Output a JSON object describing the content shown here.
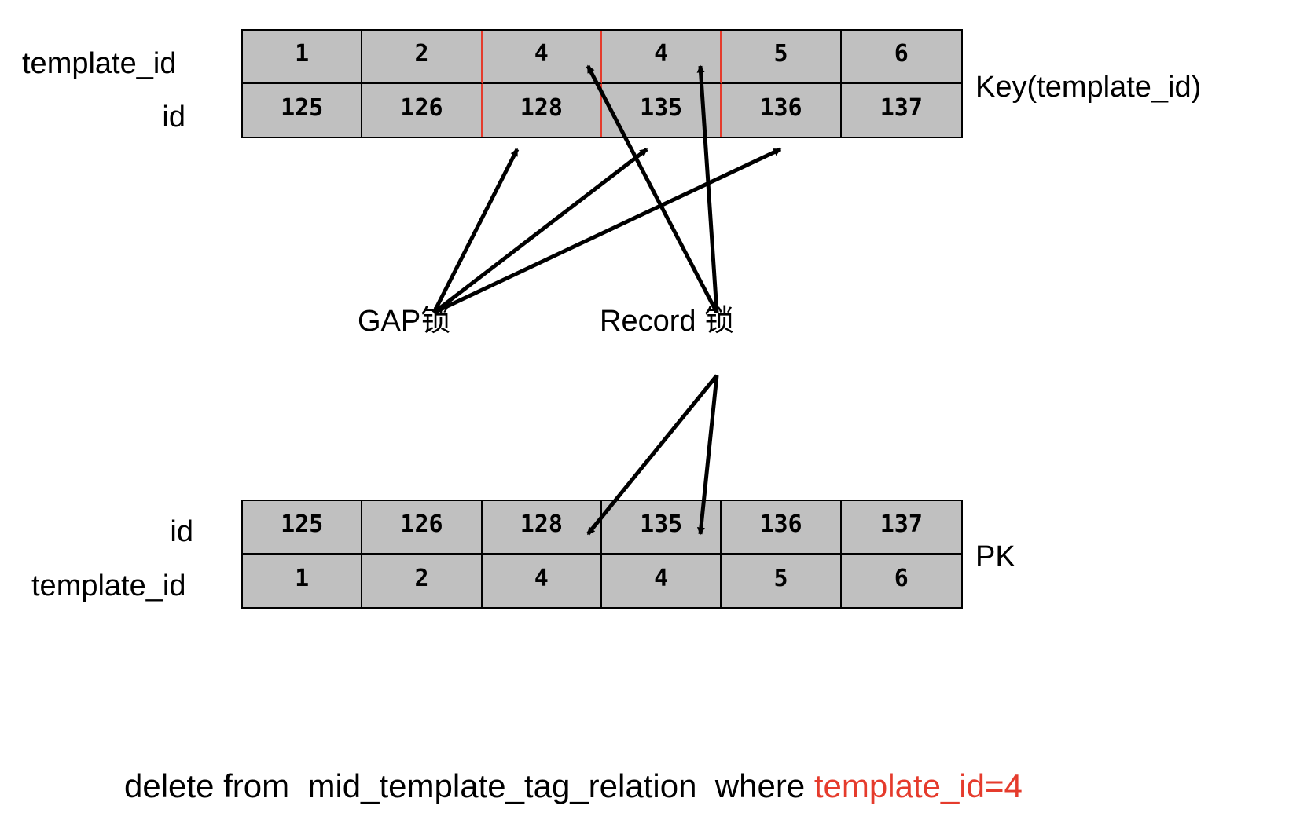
{
  "top_table": {
    "row_labels": [
      "template_id",
      "id"
    ],
    "rows": [
      [
        "1",
        "2",
        "4",
        "4",
        "5",
        "6"
      ],
      [
        "125",
        "126",
        "128",
        "135",
        "136",
        "137"
      ]
    ],
    "side_label": "Key(template_id)"
  },
  "bottom_table": {
    "row_labels": [
      "id",
      "template_id"
    ],
    "rows": [
      [
        "125",
        "126",
        "128",
        "135",
        "136",
        "137"
      ],
      [
        "1",
        "2",
        "4",
        "4",
        "5",
        "6"
      ]
    ],
    "side_label": "PK"
  },
  "locks": {
    "gap": "GAP锁",
    "record": "Record 锁"
  },
  "sql": {
    "part1": "delete from",
    "part2": "mid_template_tag_relation",
    "part3": "where",
    "highlight": "template_id=4"
  },
  "colors": {
    "cell_fill": "#c0c0c0",
    "highlight": "#e53b2c",
    "line": "#000000"
  }
}
